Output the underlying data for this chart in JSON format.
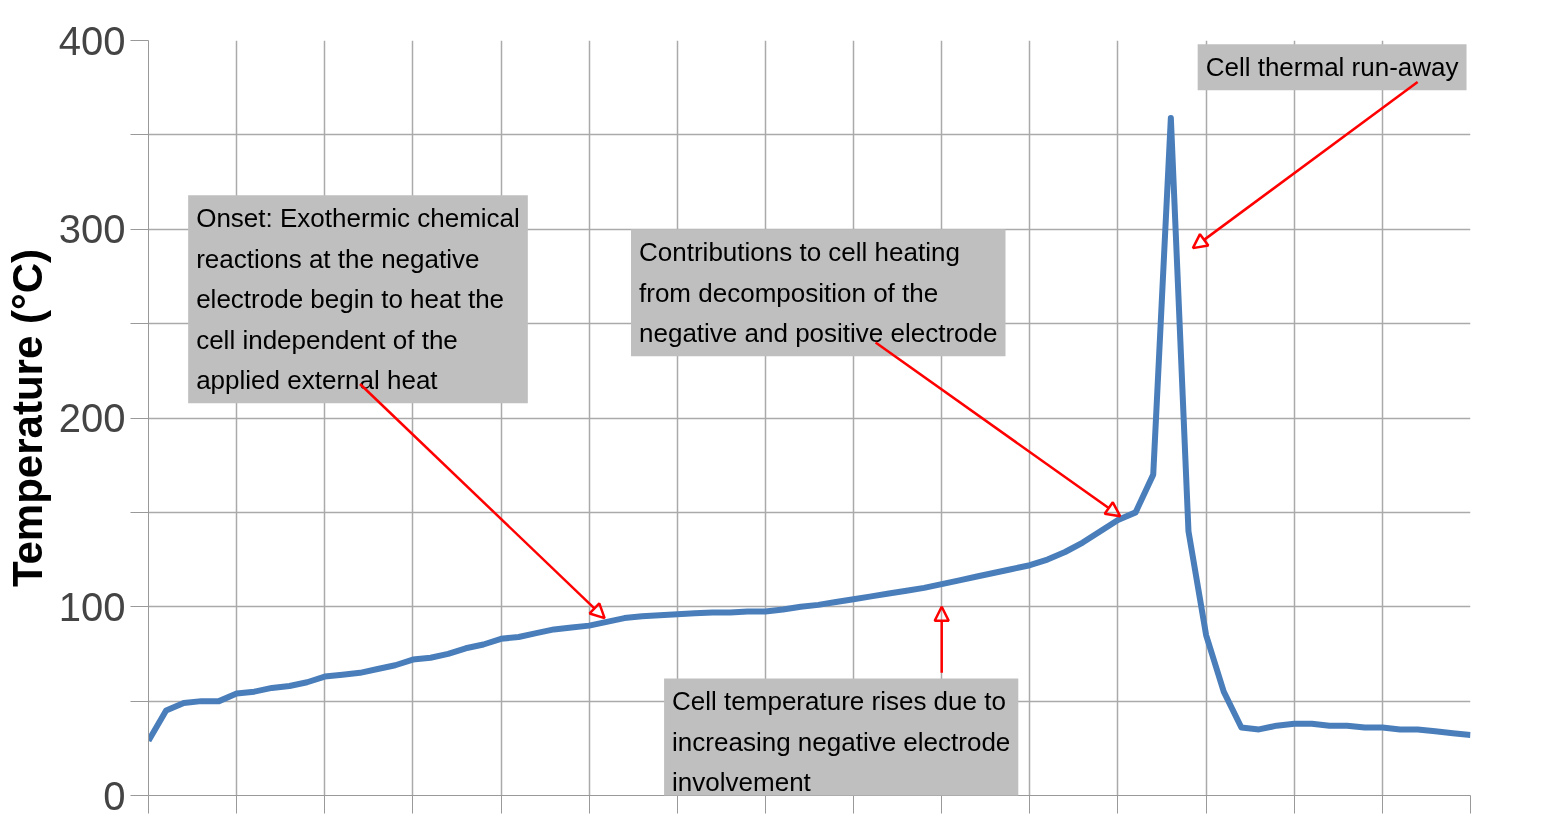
{
  "chart_data": {
    "type": "line",
    "ylabel": "Temperature (°C)",
    "grid": true,
    "marker": "none",
    "line_style": "solid",
    "tick_labels": "y",
    "categories": [
      null,
      null,
      null,
      null,
      null,
      null,
      null,
      null,
      null,
      null,
      null,
      null,
      null,
      null,
      null,
      null,
      null,
      null,
      null,
      null,
      null,
      null,
      null,
      null,
      null,
      null,
      null,
      null,
      null,
      null,
      null,
      null,
      null,
      null,
      null,
      null,
      null,
      null,
      null,
      null,
      null,
      null,
      null,
      null,
      null,
      null,
      null,
      null,
      null,
      null,
      null,
      null,
      null,
      null,
      null,
      null,
      null,
      null,
      null,
      null,
      null,
      null,
      null,
      null,
      null,
      null,
      null,
      null,
      null,
      null,
      null,
      null,
      null,
      null,
      null,
      null
    ],
    "ylim": [
      0,
      400
    ],
    "yticks": [
      0,
      {
        "value": 50,
        "label": null
      },
      100,
      {
        "value": 150,
        "label": null
      },
      200,
      {
        "value": 250,
        "label": null
      },
      300,
      {
        "value": 350,
        "label": null
      },
      400
    ],
    "series": [
      {
        "color": "#4a7ebb",
        "values": [
          29,
          45,
          49,
          50,
          50,
          54,
          55,
          57,
          58,
          60,
          63,
          64,
          65,
          67,
          69,
          72,
          73,
          75,
          78,
          80,
          83,
          84,
          86,
          88,
          89,
          90,
          92,
          94,
          95,
          95.5,
          96,
          96.5,
          97,
          97,
          97.5,
          97.5,
          98.5,
          100,
          101,
          102.5,
          104,
          105.5,
          107,
          108.5,
          110,
          112,
          114,
          116,
          118,
          120,
          122,
          125,
          129,
          134,
          140,
          146,
          150,
          170,
          359,
          140,
          85,
          55,
          36,
          35,
          37,
          38,
          38,
          37,
          37,
          36,
          36,
          35,
          35,
          34,
          33,
          32
        ]
      }
    ],
    "annotations": [
      "Onset: Exothermic chemical\nreactions at the negative\nelectrode begin to heat the\ncell independent of the\napplied external heat",
      "Contributions to cell heating\nfrom decomposition of the\nnegative and positive electrode",
      "Cell temperature rises due to\nincreasing negative electrode\ninvolvement",
      "Cell thermal run-away"
    ]
  }
}
